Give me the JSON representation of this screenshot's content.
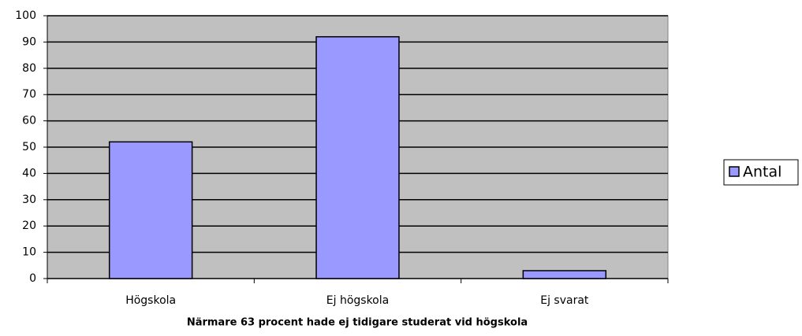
{
  "chart_data": {
    "type": "bar",
    "xlabel": "Närmare 63 procent hade ej tidigare studerat vid högskola",
    "categories": [
      "Högskola",
      "Ej högskola",
      "Ej svarat"
    ],
    "series": [
      {
        "name": "Antal",
        "color": "#9999ff",
        "values": [
          52,
          92,
          3
        ]
      }
    ],
    "ylim": [
      0,
      100
    ],
    "yticks": [
      0,
      10,
      20,
      30,
      40,
      50,
      60,
      70,
      80,
      90,
      100
    ],
    "grid": true,
    "legend": "right"
  }
}
